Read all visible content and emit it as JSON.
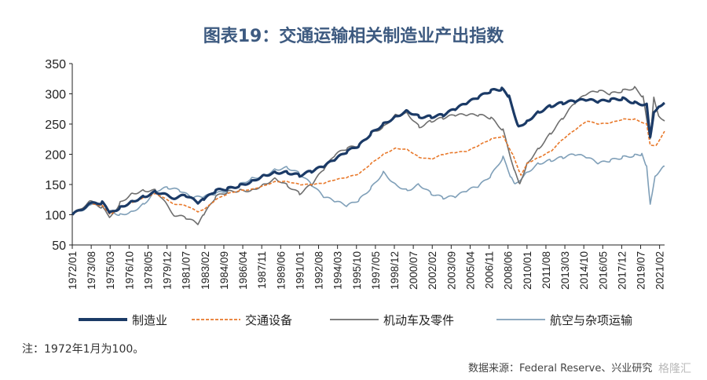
{
  "chart_data": {
    "type": "line",
    "title": "图表19：交通运输相关制造业产出指数",
    "xlabel": "",
    "ylabel": "",
    "ylim": [
      50,
      350
    ],
    "yticks": [
      50,
      100,
      150,
      200,
      250,
      300,
      350
    ],
    "xlim": [
      "1972/01",
      "2021/07"
    ],
    "xticks": [
      "1972/01",
      "1973/08",
      "1975/03",
      "1976/10",
      "1978/05",
      "1979/12",
      "1981/07",
      "1983/02",
      "1984/09",
      "1986/04",
      "1987/11",
      "1989/06",
      "1991/01",
      "1992/08",
      "1994/03",
      "1995/10",
      "1997/05",
      "1998/12",
      "2000/07",
      "2002/02",
      "2003/09",
      "2005/04",
      "2006/11",
      "2008/06",
      "2010/01",
      "2011/08",
      "2013/03",
      "2014/10",
      "2016/05",
      "2017/12",
      "2019/07",
      "2021/02"
    ],
    "grid": false,
    "legend": "bottom",
    "series": [
      {
        "name": "制造业",
        "color": "#1b3a66",
        "style": "solid-thick",
        "x": [
          1972,
          1973.5,
          1974.5,
          1975.2,
          1976,
          1977,
          1978,
          1979,
          1980.5,
          1981.5,
          1982.5,
          1983,
          1984,
          1985,
          1986,
          1987,
          1988,
          1989,
          1990,
          1991,
          1992,
          1993,
          1994,
          1995,
          1996,
          1997,
          1998,
          1999,
          2000,
          2001,
          2002,
          2003,
          2004,
          2005,
          2006,
          2007,
          2007.9,
          2008.5,
          2009.3,
          2010,
          2011,
          2012,
          2013,
          2014,
          2015,
          2016,
          2017,
          2018,
          2019,
          2020.0,
          2020.3,
          2020.6,
          2021.0,
          2021.5
        ],
        "y": [
          100,
          118,
          120,
          103,
          112,
          122,
          130,
          138,
          128,
          132,
          120,
          125,
          140,
          143,
          148,
          155,
          165,
          170,
          170,
          165,
          172,
          180,
          192,
          205,
          215,
          235,
          250,
          262,
          272,
          262,
          262,
          265,
          275,
          285,
          295,
          305,
          308,
          295,
          245,
          255,
          270,
          280,
          285,
          288,
          290,
          287,
          290,
          292,
          285,
          282,
          228,
          270,
          280,
          285
        ]
      },
      {
        "name": "交通设备",
        "color": "#e8782a",
        "style": "dashed",
        "x": [
          1972,
          1973.5,
          1974.5,
          1975.2,
          1976,
          1977,
          1978,
          1979,
          1980.5,
          1981.5,
          1982.5,
          1983,
          1984,
          1985,
          1986,
          1987,
          1988,
          1989,
          1990,
          1991,
          1992,
          1993,
          1994,
          1995,
          1996,
          1997,
          1998,
          1999,
          2000,
          2001,
          2002,
          2003,
          2004,
          2005,
          2006,
          2007,
          2008,
          2008.8,
          2009.5,
          2010,
          2011,
          2012,
          2013,
          2014,
          2015,
          2016,
          2017,
          2018,
          2019,
          2020.0,
          2020.3,
          2020.8,
          2021.5
        ],
        "y": [
          100,
          118,
          115,
          100,
          112,
          120,
          128,
          135,
          118,
          115,
          105,
          108,
          125,
          135,
          140,
          142,
          148,
          155,
          155,
          150,
          150,
          152,
          158,
          162,
          168,
          185,
          200,
          210,
          208,
          195,
          192,
          200,
          203,
          205,
          215,
          225,
          230,
          200,
          165,
          185,
          195,
          205,
          225,
          240,
          255,
          250,
          252,
          258,
          258,
          250,
          215,
          215,
          238
        ]
      },
      {
        "name": "机动车及零件",
        "color": "#6e6e6e",
        "style": "solid",
        "x": [
          1972,
          1973.5,
          1974.5,
          1975.2,
          1976,
          1977,
          1978,
          1979,
          1980.5,
          1981.5,
          1982.5,
          1983,
          1984,
          1985,
          1986,
          1987,
          1988,
          1989,
          1990,
          1991,
          1992,
          1993,
          1994,
          1995,
          1996,
          1997,
          1998,
          1999,
          2000,
          2001,
          2002,
          2003,
          2004,
          2005,
          2006,
          2007,
          2008,
          2009.0,
          2009.4,
          2010,
          2011,
          2012,
          2013,
          2014,
          2015,
          2016,
          2017,
          2018,
          2019,
          2019.7,
          2020.3,
          2020.6,
          2021.0,
          2021.5
        ],
        "y": [
          100,
          122,
          112,
          95,
          120,
          135,
          140,
          140,
          100,
          95,
          85,
          100,
          130,
          138,
          140,
          140,
          150,
          160,
          148,
          135,
          150,
          175,
          200,
          210,
          215,
          235,
          245,
          265,
          268,
          245,
          255,
          260,
          265,
          265,
          265,
          260,
          240,
          170,
          150,
          185,
          210,
          235,
          260,
          285,
          300,
          305,
          300,
          305,
          310,
          295,
          225,
          295,
          265,
          255
        ]
      },
      {
        "name": "航空与杂项运输",
        "color": "#7f9fb8",
        "style": "solid",
        "x": [
          1972,
          1973.5,
          1974.5,
          1975.2,
          1976,
          1977,
          1978,
          1979,
          1980,
          1981,
          1982,
          1983,
          1984,
          1985,
          1986,
          1987,
          1988,
          1989,
          1990,
          1991,
          1992,
          1993,
          1994,
          1995,
          1996,
          1997,
          1998,
          1999,
          2000,
          2001,
          2002,
          2003,
          2004,
          2005,
          2006,
          2007,
          2008,
          2008.7,
          2009,
          2010,
          2011,
          2012,
          2013,
          2014,
          2015,
          2016,
          2017,
          2018,
          2019,
          2019.6,
          2020.0,
          2020.3,
          2020.7,
          2021.5
        ],
        "y": [
          100,
          115,
          118,
          105,
          100,
          105,
          118,
          140,
          145,
          140,
          128,
          130,
          135,
          140,
          150,
          160,
          165,
          175,
          178,
          168,
          150,
          130,
          122,
          115,
          125,
          145,
          170,
          150,
          140,
          150,
          135,
          128,
          130,
          140,
          148,
          165,
          195,
          160,
          150,
          170,
          185,
          190,
          195,
          200,
          195,
          185,
          190,
          195,
          198,
          200,
          180,
          118,
          165,
          180
        ]
      }
    ]
  },
  "note": "注：1972年1月为100。",
  "source": "数据来源：Federal Reserve、兴业研究",
  "watermark": "格隆汇"
}
